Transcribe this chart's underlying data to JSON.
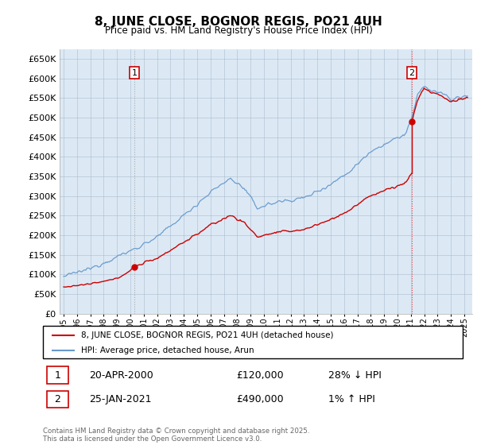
{
  "title": "8, JUNE CLOSE, BOGNOR REGIS, PO21 4UH",
  "subtitle": "Price paid vs. HM Land Registry's House Price Index (HPI)",
  "ylabel_ticks": [
    "£0",
    "£50K",
    "£100K",
    "£150K",
    "£200K",
    "£250K",
    "£300K",
    "£350K",
    "£400K",
    "£450K",
    "£500K",
    "£550K",
    "£600K",
    "£650K"
  ],
  "ytick_values": [
    0,
    50000,
    100000,
    150000,
    200000,
    250000,
    300000,
    350000,
    400000,
    450000,
    500000,
    550000,
    600000,
    650000
  ],
  "xlim_start": 1994.7,
  "xlim_end": 2025.6,
  "ylim_min": 0,
  "ylim_max": 675000,
  "legend_line1": "8, JUNE CLOSE, BOGNOR REGIS, PO21 4UH (detached house)",
  "legend_line2": "HPI: Average price, detached house, Arun",
  "annotation1_label": "1",
  "annotation1_date": "20-APR-2000",
  "annotation1_price": "£120,000",
  "annotation1_hpi": "28% ↓ HPI",
  "annotation2_label": "2",
  "annotation2_date": "25-JAN-2021",
  "annotation2_price": "£490,000",
  "annotation2_hpi": "1% ↑ HPI",
  "footer": "Contains HM Land Registry data © Crown copyright and database right 2025.\nThis data is licensed under the Open Government Licence v3.0.",
  "red_color": "#cc0000",
  "blue_color": "#6699cc",
  "bg_fill_color": "#dce9f5",
  "background_color": "#ffffff",
  "grid_color": "#aabbcc"
}
